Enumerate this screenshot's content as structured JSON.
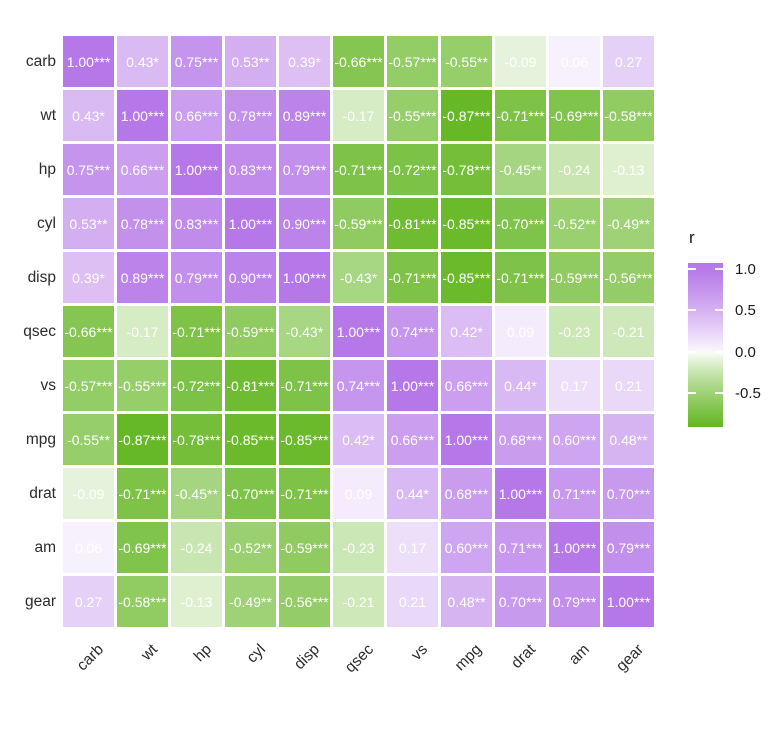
{
  "chart_data": {
    "type": "heatmap",
    "title": "",
    "variables": [
      "carb",
      "wt",
      "hp",
      "cyl",
      "disp",
      "qsec",
      "vs",
      "mpg",
      "drat",
      "am",
      "gear"
    ],
    "values": [
      [
        1.0,
        0.43,
        0.75,
        0.53,
        0.39,
        -0.66,
        -0.57,
        -0.55,
        -0.09,
        0.06,
        0.27
      ],
      [
        0.43,
        1.0,
        0.66,
        0.78,
        0.89,
        -0.17,
        -0.55,
        -0.87,
        -0.71,
        -0.69,
        -0.58
      ],
      [
        0.75,
        0.66,
        1.0,
        0.83,
        0.79,
        -0.71,
        -0.72,
        -0.78,
        -0.45,
        -0.24,
        -0.13
      ],
      [
        0.53,
        0.78,
        0.83,
        1.0,
        0.9,
        -0.59,
        -0.81,
        -0.85,
        -0.7,
        -0.52,
        -0.49
      ],
      [
        0.39,
        0.89,
        0.79,
        0.9,
        1.0,
        -0.43,
        -0.71,
        -0.85,
        -0.71,
        -0.59,
        -0.56
      ],
      [
        -0.66,
        -0.17,
        -0.71,
        -0.59,
        -0.43,
        1.0,
        0.74,
        0.42,
        0.09,
        -0.23,
        -0.21
      ],
      [
        -0.57,
        -0.55,
        -0.72,
        -0.81,
        -0.71,
        0.74,
        1.0,
        0.66,
        0.44,
        0.17,
        0.21
      ],
      [
        -0.55,
        -0.87,
        -0.78,
        -0.85,
        -0.85,
        0.42,
        0.66,
        1.0,
        0.68,
        0.6,
        0.48
      ],
      [
        -0.09,
        -0.71,
        -0.45,
        -0.7,
        -0.71,
        0.09,
        0.44,
        0.68,
        1.0,
        0.71,
        0.7
      ],
      [
        0.06,
        -0.69,
        -0.24,
        -0.52,
        -0.59,
        -0.23,
        0.17,
        0.6,
        0.71,
        1.0,
        0.79
      ],
      [
        0.27,
        -0.58,
        -0.13,
        -0.49,
        -0.56,
        -0.21,
        0.21,
        0.48,
        0.7,
        0.79,
        1.0
      ]
    ],
    "cell_labels": [
      [
        "1.00***",
        "0.43*",
        "0.75***",
        "0.53**",
        "0.39*",
        "-0.66***",
        "-0.57***",
        "-0.55**",
        "-0.09",
        "0.06",
        "0.27"
      ],
      [
        "0.43*",
        "1.00***",
        "0.66***",
        "0.78***",
        "0.89***",
        "-0.17",
        "-0.55***",
        "-0.87***",
        "-0.71***",
        "-0.69***",
        "-0.58***"
      ],
      [
        "0.75***",
        "0.66***",
        "1.00***",
        "0.83***",
        "0.79***",
        "-0.71***",
        "-0.72***",
        "-0.78***",
        "-0.45**",
        "-0.24",
        "-0.13"
      ],
      [
        "0.53**",
        "0.78***",
        "0.83***",
        "1.00***",
        "0.90***",
        "-0.59***",
        "-0.81***",
        "-0.85***",
        "-0.70***",
        "-0.52**",
        "-0.49**"
      ],
      [
        "0.39*",
        "0.89***",
        "0.79***",
        "0.90***",
        "1.00***",
        "-0.43*",
        "-0.71***",
        "-0.85***",
        "-0.71***",
        "-0.59***",
        "-0.56***"
      ],
      [
        "-0.66***",
        "-0.17",
        "-0.71***",
        "-0.59***",
        "-0.43*",
        "1.00***",
        "0.74***",
        "0.42*",
        "0.09",
        "-0.23",
        "-0.21"
      ],
      [
        "-0.57***",
        "-0.55***",
        "-0.72***",
        "-0.81***",
        "-0.71***",
        "0.74***",
        "1.00***",
        "0.66***",
        "0.44*",
        "0.17",
        "0.21"
      ],
      [
        "-0.55**",
        "-0.87***",
        "-0.78***",
        "-0.85***",
        "-0.85***",
        "0.42*",
        "0.66***",
        "1.00***",
        "0.68***",
        "0.60***",
        "0.48**"
      ],
      [
        "-0.09",
        "-0.71***",
        "-0.45**",
        "-0.70***",
        "-0.71***",
        "0.09",
        "0.44*",
        "0.68***",
        "1.00***",
        "0.71***",
        "0.70***"
      ],
      [
        "0.06",
        "-0.69***",
        "-0.24",
        "-0.52**",
        "-0.59***",
        "-0.23",
        "0.17",
        "0.60***",
        "0.71***",
        "1.00***",
        "0.79***"
      ],
      [
        "0.27",
        "-0.58***",
        "-0.13",
        "-0.49**",
        "-0.56***",
        "-0.21",
        "0.21",
        "0.48**",
        "0.70***",
        "0.79***",
        "1.00***"
      ]
    ],
    "legend": {
      "title": "r",
      "tick_labels": [
        "1.0",
        "0.5",
        "0.0",
        "-0.5"
      ],
      "tick_values": [
        1.0,
        0.5,
        0.0,
        -0.5
      ],
      "domain": [
        -0.904,
        1.072
      ]
    },
    "colors": {
      "positive_end": "#B678E8",
      "negative_end": "#55B00E",
      "mid": "#FFFFFF",
      "cell_text": "#FFFFFF",
      "axis_text": "#2B2B2B"
    },
    "layout": {
      "grid_on": false,
      "legend_position": "right",
      "x_label_angle": 45
    }
  }
}
